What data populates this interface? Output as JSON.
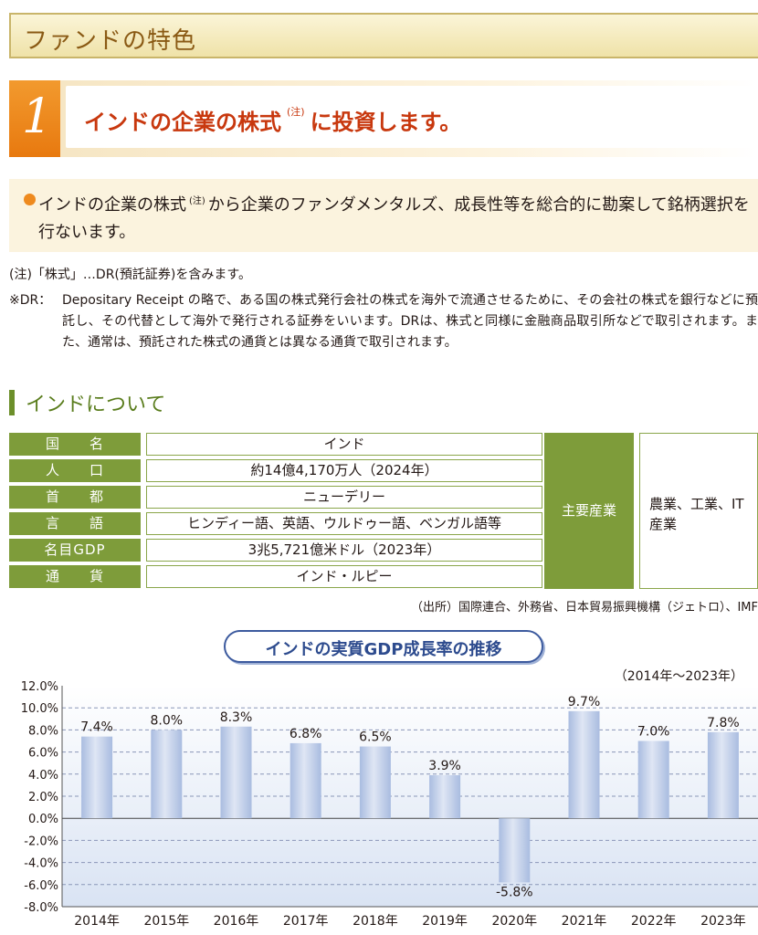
{
  "header": {
    "title": "ファンドの特色"
  },
  "feature": {
    "number": "1",
    "title_pre": "インドの企業の株式",
    "title_note": "(注)",
    "title_post": "に投資します。"
  },
  "highlight": {
    "line_pre": "インドの企業の株式",
    "line_note": "(注)",
    "line_post": "から企業のファンダメンタルズ、成長性等を総合的に勘案して銘柄選択を行ないます。"
  },
  "notes": {
    "note1": "(注)「株式」…DR(預託証券)を含みます。",
    "note2_label": "※DR：",
    "note2_body": "Depositary Receipt の略で、ある国の株式発行会社の株式を海外で流通させるために、その会社の株式を銀行などに預託し、その代替として海外で発行される証券をいいます。DRは、株式と同様に金融商品取引所などで取引されます。また、通常は、預託された株式の通貨とは異なる通貨で取引されます。"
  },
  "section": {
    "title": "インドについて"
  },
  "info_table": {
    "rows": [
      {
        "label": "国　　名",
        "value": "インド"
      },
      {
        "label": "人　　口",
        "value": "約14億4,170万人（2024年）"
      },
      {
        "label": "首　　都",
        "value": "ニューデリー"
      },
      {
        "label": "言　　語",
        "value": "ヒンディー語、英語、ウルドゥー語、ベンガル語等"
      },
      {
        "label": "名目GDP",
        "value": "3兆5,721億米ドル（2023年）"
      },
      {
        "label": "通　　貨",
        "value": "インド・ルピー"
      }
    ],
    "industry_label": "主要産業",
    "industry_value": "農業、工業、IT産業"
  },
  "source": "（出所）国際連合、外務省、日本貿易振興機構（ジェトロ）、IMF",
  "chart_data": {
    "type": "bar",
    "title": "インドの実質GDP成長率の推移",
    "subtitle": "（2014年～2023年）",
    "categories": [
      "2014年",
      "2015年",
      "2016年",
      "2017年",
      "2018年",
      "2019年",
      "2020年",
      "2021年",
      "2022年",
      "2023年"
    ],
    "values": [
      7.4,
      8.0,
      8.3,
      6.8,
      6.5,
      3.9,
      -5.8,
      9.7,
      7.0,
      7.8
    ],
    "value_labels": [
      "7.4%",
      "8.0%",
      "8.3%",
      "6.8%",
      "6.5%",
      "3.9%",
      "-5.8%",
      "9.7%",
      "7.0%",
      "7.8%"
    ],
    "ylim": [
      -8,
      12
    ],
    "yticks": [
      "12.0%",
      "10.0%",
      "8.0%",
      "6.0%",
      "4.0%",
      "2.0%",
      "0.0%",
      "-2.0%",
      "-4.0%",
      "-6.0%",
      "-8.0%"
    ],
    "grid": true,
    "colors": {
      "bar_top": "#dfe6f4",
      "bar_bottom": "#a9bce0",
      "plot_top": "#ffffff",
      "plot_bottom": "#d9e3f3",
      "grid": "#8a96b8"
    }
  }
}
